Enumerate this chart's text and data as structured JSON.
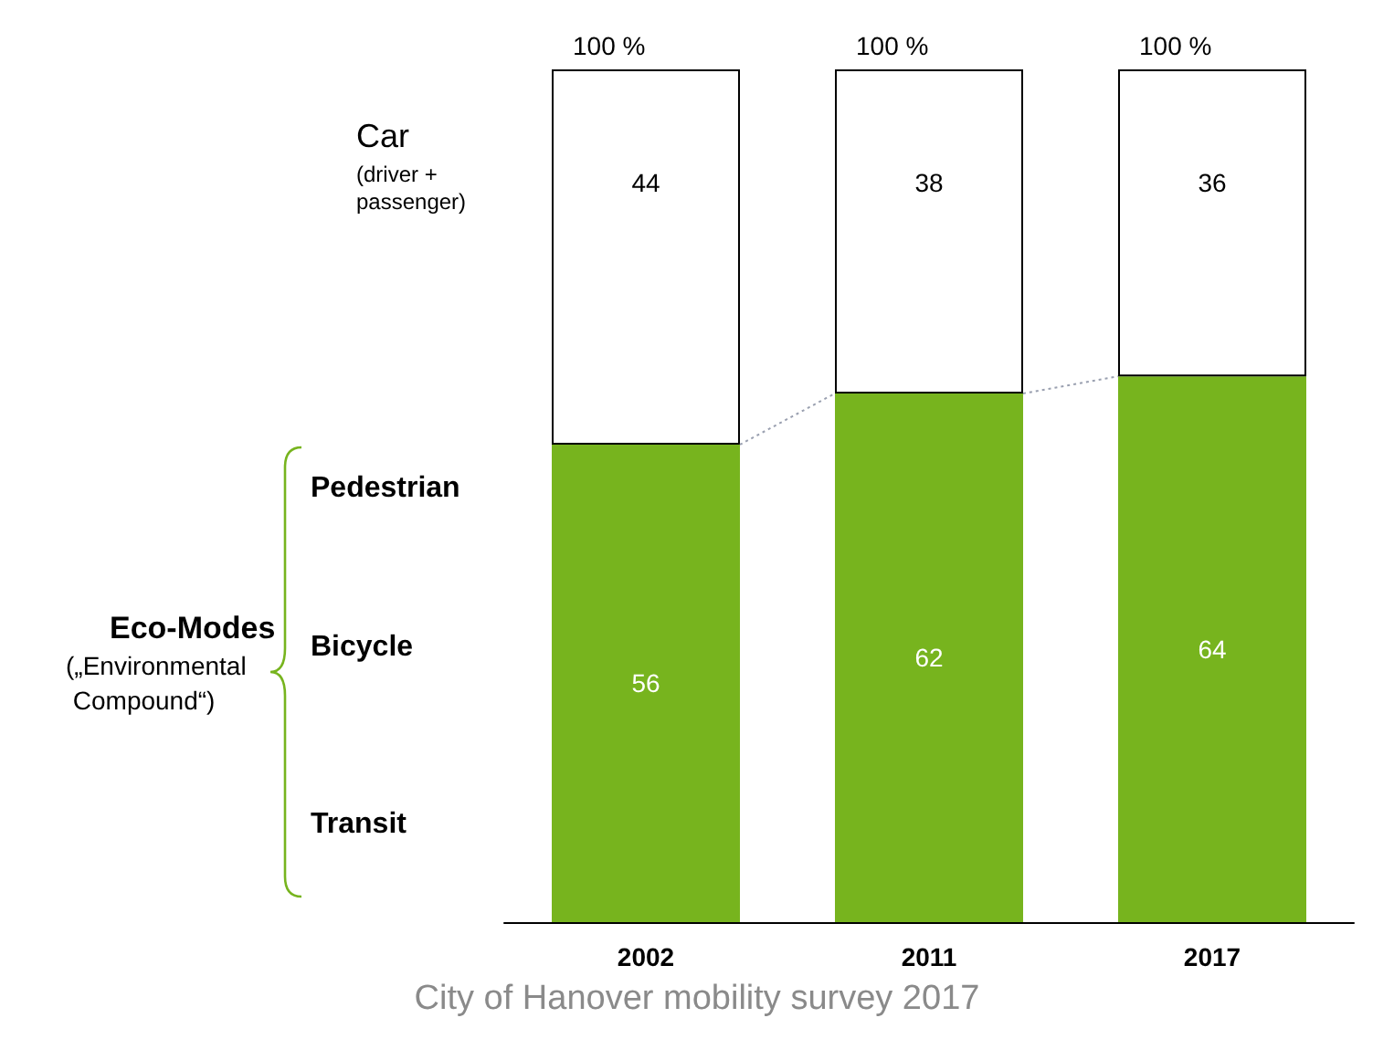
{
  "chart_data": {
    "type": "bar",
    "stacked": true,
    "data_labels": true,
    "categories": [
      "2002",
      "2011",
      "2017"
    ],
    "series": [
      {
        "color": "#77b41e",
        "values": [
          56,
          62,
          64
        ]
      },
      {
        "color": "#ffffff",
        "values": [
          44,
          38,
          36
        ]
      }
    ],
    "totals": [
      "100 %",
      "100 %",
      "100 %"
    ],
    "annotations": [
      "Car",
      "Eco-Modes",
      "(driver + passenger)",
      "Pedestrian",
      "Bicycle",
      "Transit",
      "(„Environmental Compound“)",
      "City of Hanover mobility survey 2017"
    ]
  }
}
